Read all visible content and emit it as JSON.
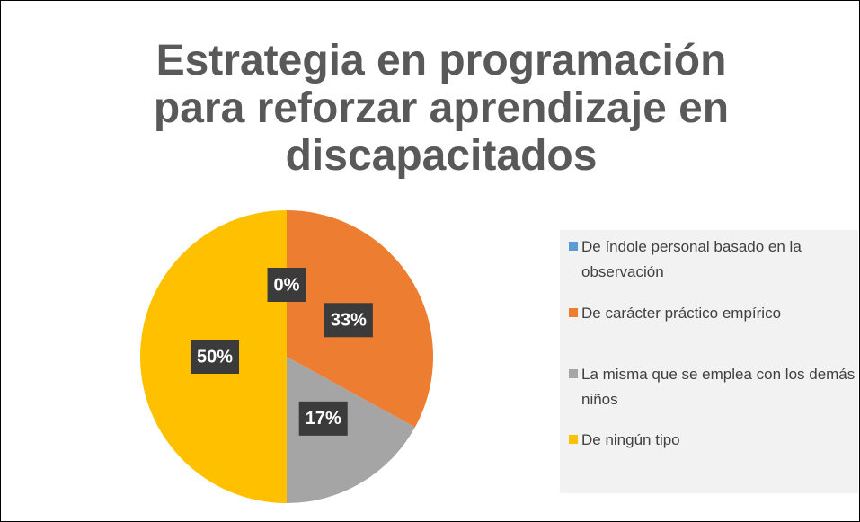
{
  "chart_data": {
    "type": "pie",
    "title": "Estrategia en programación para reforzar aprendizaje en discapacitados",
    "categories": [
      "De índole personal basado en la observación",
      "De carácter práctico empírico",
      "La misma que se emplea con los demás niños",
      "De ningún tipo"
    ],
    "values": [
      0,
      33,
      17,
      50
    ],
    "value_labels": [
      "0%",
      "33%",
      "17%",
      "50%"
    ],
    "colors": [
      "#5b9bd5",
      "#ed7d31",
      "#a5a5a5",
      "#ffc000"
    ],
    "legend": "right"
  }
}
